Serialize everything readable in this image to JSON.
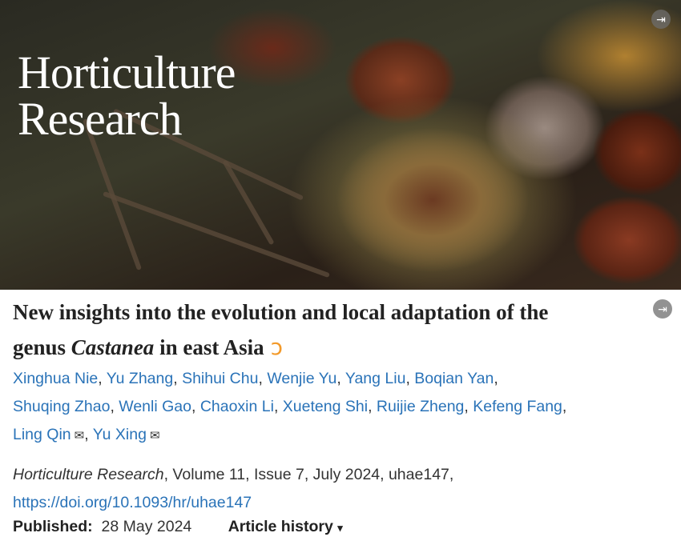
{
  "banner": {
    "brand_line1": "Horticulture",
    "brand_line2": "Research",
    "exit_icon": "exit-fullscreen-icon"
  },
  "title": {
    "line1": "New insights into the evolution and local adaptation of the",
    "line2_prefix": "genus ",
    "line2_italic": "Castanea",
    "line2_suffix": " in east Asia",
    "open_access_icon": "open-access-icon",
    "open_access_glyph": "ↄ"
  },
  "authors": [
    {
      "name": "Xinghua Nie"
    },
    {
      "name": "Yu Zhang"
    },
    {
      "name": "Shihui Chu"
    },
    {
      "name": "Wenjie Yu"
    },
    {
      "name": "Yang Liu"
    },
    {
      "name": "Boqian Yan"
    },
    {
      "name": "Shuqing Zhao"
    },
    {
      "name": "Wenli Gao"
    },
    {
      "name": "Chaoxin Li"
    },
    {
      "name": "Xueteng Shi"
    },
    {
      "name": "Ruijie Zheng"
    },
    {
      "name": "Kefeng Fang"
    },
    {
      "name": "Ling Qin",
      "corresponding": true
    },
    {
      "name": "Yu Xing",
      "corresponding": true
    }
  ],
  "mail_glyph": "✉",
  "citation": {
    "journal": "Horticulture Research",
    "details": ", Volume 11, Issue 7, July 2024, uhae147,",
    "doi": "https://doi.org/10.1093/hr/uhae147"
  },
  "published": {
    "label": "Published:",
    "date": "28 May 2024",
    "history_label": "Article history",
    "history_caret": "▾"
  },
  "colors": {
    "link": "#2a73b8",
    "open_access": "#f39a2a"
  }
}
